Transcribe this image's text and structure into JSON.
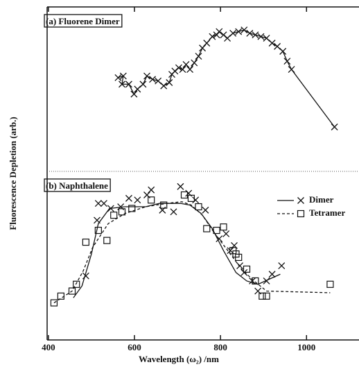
{
  "axes": {
    "xlabel": "Wavelength (ω₂) /nm",
    "ylabel": "Fluorescence Depletion (arb.)",
    "xlim": [
      397,
      1122
    ],
    "xticks": [
      400,
      600,
      800,
      1000
    ]
  },
  "chart_data": [
    {
      "type": "line",
      "title": "(a) Fluorene Dimer",
      "ylim": [
        0,
        1
      ],
      "series": [
        {
          "marker": "x",
          "line": "solid",
          "color": "#111111",
          "x": [
            562,
            574,
            571,
            587,
            599,
            607,
            620,
            629,
            642,
            655,
            668,
            681,
            687,
            694,
            703,
            712,
            720,
            729,
            739,
            749,
            758,
            768,
            781,
            791,
            797,
            807,
            816,
            829,
            842,
            855,
            868,
            881,
            894,
            907,
            920,
            932,
            945,
            955,
            965,
            1065
          ],
          "values": [
            0.57,
            0.58,
            0.53,
            0.53,
            0.47,
            0.5,
            0.53,
            0.58,
            0.56,
            0.55,
            0.52,
            0.54,
            0.59,
            0.61,
            0.63,
            0.62,
            0.65,
            0.62,
            0.66,
            0.7,
            0.75,
            0.78,
            0.82,
            0.83,
            0.85,
            0.83,
            0.81,
            0.84,
            0.85,
            0.86,
            0.84,
            0.83,
            0.82,
            0.81,
            0.78,
            0.76,
            0.73,
            0.67,
            0.62,
            0.27
          ]
        }
      ]
    },
    {
      "type": "line",
      "title": "(b) Naphthalene",
      "ylim": [
        0,
        1
      ],
      "legend": "upper right",
      "series": [
        {
          "name": "Dimer",
          "marker": "x",
          "line": "solid",
          "color": "#111111",
          "x": [
            487,
            513,
            516,
            529,
            545,
            568,
            587,
            607,
            629,
            639,
            665,
            691,
            707,
            726,
            742,
            765,
            797,
            813,
            823,
            832,
            845,
            855,
            874,
            887,
            907,
            920,
            942
          ],
          "values": [
            0.38,
            0.71,
            0.81,
            0.81,
            0.78,
            0.79,
            0.84,
            0.83,
            0.86,
            0.89,
            0.77,
            0.76,
            0.91,
            0.87,
            0.83,
            0.77,
            0.6,
            0.63,
            0.53,
            0.56,
            0.44,
            0.4,
            0.35,
            0.29,
            0.35,
            0.39,
            0.44
          ],
          "fit_x": [
            458,
            478,
            500,
            516,
            542,
            578,
            626,
            658,
            707,
            729,
            755,
            781,
            807,
            836,
            861,
            887,
            913,
            939
          ],
          "fit_values": [
            0.25,
            0.32,
            0.51,
            0.69,
            0.78,
            0.79,
            0.79,
            0.81,
            0.81,
            0.8,
            0.75,
            0.66,
            0.53,
            0.4,
            0.35,
            0.33,
            0.36,
            0.39
          ]
        },
        {
          "name": "Tetramer",
          "marker": "square",
          "line": "dashed",
          "color": "#111111",
          "x": [
            413,
            429,
            455,
            465,
            487,
            516,
            536,
            552,
            571,
            594,
            639,
            668,
            716,
            732,
            749,
            768,
            791,
            807,
            829,
            836,
            842,
            861,
            881,
            897,
            907,
            1055
          ],
          "values": [
            0.22,
            0.26,
            0.29,
            0.33,
            0.58,
            0.65,
            0.59,
            0.74,
            0.76,
            0.78,
            0.83,
            0.8,
            0.86,
            0.84,
            0.79,
            0.66,
            0.65,
            0.67,
            0.53,
            0.51,
            0.49,
            0.42,
            0.35,
            0.26,
            0.26,
            0.33
          ],
          "fit_x": [
            413,
            455,
            481,
            503,
            539,
            578,
            626,
            675,
            710,
            732,
            758,
            787,
            820,
            849,
            878,
            907,
            1055
          ],
          "fit_values": [
            0.22,
            0.29,
            0.41,
            0.55,
            0.69,
            0.75,
            0.79,
            0.81,
            0.82,
            0.8,
            0.74,
            0.63,
            0.52,
            0.42,
            0.35,
            0.29,
            0.28
          ]
        }
      ]
    }
  ]
}
